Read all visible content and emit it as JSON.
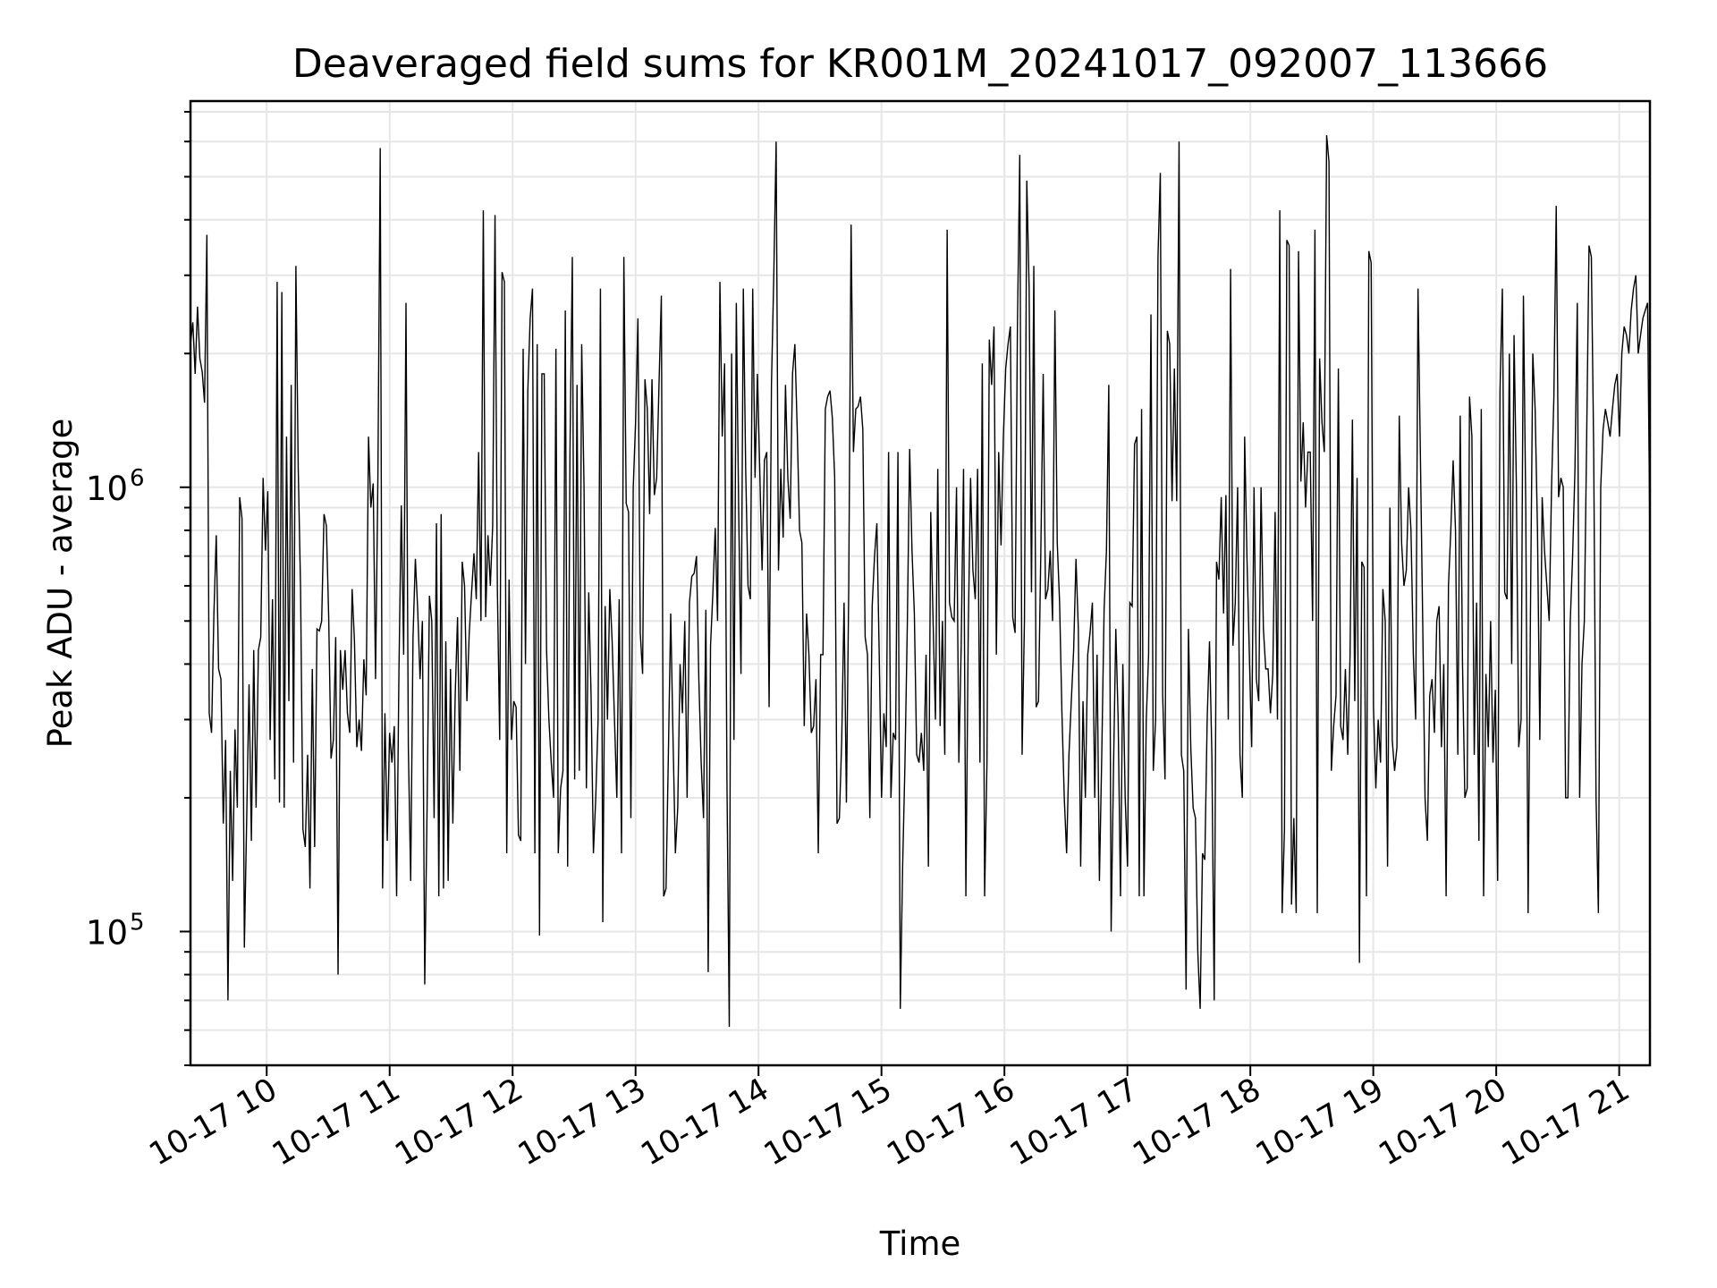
{
  "chart_data": {
    "type": "line",
    "title": "Deaveraged field sums for KR001M_20241017_092007_113666",
    "xlabel": "Time",
    "ylabel": "Peak ADU - average",
    "yscale": "log",
    "grid": true,
    "xlim": [
      "2024-10-17 09:22",
      "2024-10-17 21:15"
    ],
    "ylim": [
      50000,
      7400000
    ],
    "x_ticks": [
      "10-17 10",
      "10-17 11",
      "10-17 12",
      "10-17 13",
      "10-17 14",
      "10-17 15",
      "10-17 16",
      "10-17 17",
      "10-17 18",
      "10-17 19",
      "10-17 20",
      "10-17 21"
    ],
    "x_tick_hours": [
      10,
      11,
      12,
      13,
      14,
      15,
      16,
      17,
      18,
      19,
      20,
      21
    ],
    "y_ticks": [
      {
        "value": 100000,
        "label": "10",
        "exp": "5"
      },
      {
        "value": 1000000,
        "label": "10",
        "exp": "6"
      }
    ],
    "x_start_hour": 9.38,
    "x_end_hour": 21.25,
    "series": [
      {
        "values": [
          2100000,
          2350000,
          1800000,
          2550000,
          1950000,
          1820000,
          1550000,
          3700000,
          310000,
          280000,
          520000,
          780000,
          390000,
          370000,
          175000,
          270000,
          70000,
          230000,
          130000,
          285000,
          190000,
          950000,
          850000,
          92000,
          180000,
          360000,
          160000,
          430000,
          190000,
          430000,
          460000,
          1050000,
          720000,
          980000,
          270000,
          560000,
          220000,
          2900000,
          195000,
          2750000,
          190000,
          1300000,
          330000,
          1700000,
          240000,
          3150000,
          1100000,
          590000,
          170000,
          155000,
          250000,
          125000,
          390000,
          155000,
          480000,
          475000,
          500000,
          870000,
          820000,
          510000,
          245000,
          270000,
          460000,
          80000,
          430000,
          350000,
          430000,
          310000,
          280000,
          590000,
          450000,
          260000,
          300000,
          255000,
          410000,
          340000,
          1300000,
          900000,
          1020000,
          370000,
          1050000,
          5800000,
          125000,
          310000,
          160000,
          280000,
          240000,
          290000,
          120000,
          390000,
          910000,
          420000,
          2600000,
          260000,
          130000,
          460000,
          690000,
          530000,
          370000,
          500000,
          76000,
          190000,
          570000,
          500000,
          180000,
          830000,
          120000,
          870000,
          125000,
          450000,
          130000,
          390000,
          175000,
          340000,
          510000,
          230000,
          680000,
          600000,
          330000,
          470000,
          580000,
          710000,
          560000,
          1200000,
          500000,
          4200000,
          510000,
          780000,
          600000,
          820000,
          4100000,
          590000,
          270000,
          3050000,
          2900000,
          150000,
          620000,
          270000,
          330000,
          320000,
          165000,
          160000,
          2050000,
          400000,
          1650000,
          2400000,
          2800000,
          150000,
          2100000,
          98000,
          1800000,
          1800000,
          430000,
          300000,
          240000,
          200000,
          2050000,
          150000,
          210000,
          230000,
          2500000,
          140000,
          1200000,
          3300000,
          220000,
          1700000,
          230000,
          2100000,
          1000000,
          210000,
          580000,
          340000,
          150000,
          200000,
          300000,
          2800000,
          105000,
          540000,
          300000,
          590000,
          450000,
          300000,
          200000,
          560000,
          150000,
          3300000,
          920000,
          880000,
          180000,
          1000000,
          1400000,
          2400000,
          470000,
          380000,
          1750000,
          1500000,
          870000,
          1750000,
          960000,
          1050000,
          1700000,
          2700000,
          120000,
          125000,
          250000,
          520000,
          270000,
          150000,
          190000,
          400000,
          310000,
          500000,
          200000,
          550000,
          630000,
          640000,
          700000,
          370000,
          240000,
          180000,
          530000,
          81000,
          440000,
          580000,
          810000,
          500000,
          2900000,
          1300000,
          1900000,
          220000,
          61000,
          2000000,
          270000,
          2600000,
          900000,
          380000,
          2800000,
          1100000,
          600000,
          560000,
          2800000,
          1050000,
          1800000,
          1100000,
          650000,
          1150000,
          1200000,
          320000,
          1700000,
          3000000,
          6000000,
          650000,
          1100000,
          770000,
          1700000,
          1050000,
          850000,
          1800000,
          2100000,
          1350000,
          800000,
          750000,
          290000,
          520000,
          420000,
          280000,
          290000,
          370000,
          150000,
          420000,
          420000,
          1500000,
          1600000,
          1650000,
          1430000,
          1050000,
          175000,
          180000,
          270000,
          550000,
          195000,
          600000,
          3900000,
          1200000,
          1500000,
          1520000,
          1600000,
          1350000,
          460000,
          420000,
          180000,
          540000,
          700000,
          830000,
          420000,
          200000,
          310000,
          260000,
          1200000,
          200000,
          280000,
          270000,
          1200000,
          67000,
          140000,
          240000,
          490000,
          1220000,
          720000,
          520000,
          250000,
          240000,
          280000,
          230000,
          420000,
          140000,
          880000,
          500000,
          300000,
          1100000,
          290000,
          500000,
          250000,
          3800000,
          550000,
          510000,
          500000,
          1000000,
          240000,
          440000,
          1100000,
          120000,
          470000,
          1050000,
          650000,
          560000,
          1100000,
          240000,
          1900000,
          120000,
          240000,
          2150000,
          1700000,
          2300000,
          420000,
          1200000,
          740000,
          1300000,
          1850000,
          2100000,
          2300000,
          510000,
          470000,
          2300000,
          5600000,
          250000,
          500000,
          4900000,
          2800000,
          580000,
          3150000,
          320000,
          330000,
          720000,
          1800000,
          560000,
          590000,
          720000,
          500000,
          2500000,
          750000,
          550000,
          310000,
          200000,
          150000,
          250000,
          330000,
          430000,
          690000,
          480000,
          140000,
          330000,
          200000,
          420000,
          470000,
          550000,
          200000,
          420000,
          130000,
          250000,
          530000,
          720000,
          1700000,
          100000,
          230000,
          480000,
          300000,
          120000,
          400000,
          200000,
          140000,
          550000,
          540000,
          1250000,
          1300000,
          120000,
          1500000,
          120000,
          300000,
          420000,
          2450000,
          230000,
          300000,
          3300000,
          5100000,
          340000,
          220000,
          2250000,
          2100000,
          930000,
          1850000,
          930000,
          6000000,
          250000,
          230000,
          74000,
          480000,
          260000,
          190000,
          180000,
          90000,
          67000,
          150000,
          145000,
          300000,
          450000,
          250000,
          70000,
          680000,
          620000,
          950000,
          520000,
          960000,
          300000,
          3100000,
          440000,
          550000,
          1000000,
          250000,
          200000,
          1300000,
          690000,
          420000,
          260000,
          1000000,
          370000,
          330000,
          1000000,
          480000,
          390000,
          390000,
          310000,
          380000,
          880000,
          300000,
          4200000,
          110000,
          170000,
          3600000,
          3500000,
          115000,
          180000,
          110000,
          3400000,
          1030000,
          1400000,
          900000,
          1200000,
          1200000,
          500000,
          3800000,
          110000,
          1950000,
          1400000,
          1200000,
          6200000,
          5400000,
          230000,
          290000,
          340000,
          1850000,
          290000,
          270000,
          390000,
          250000,
          420000,
          1420000,
          330000,
          1050000,
          85000,
          680000,
          660000,
          120000,
          3400000,
          3200000,
          320000,
          210000,
          300000,
          240000,
          590000,
          500000,
          140000,
          900000,
          270000,
          230000,
          260000,
          1450000,
          750000,
          600000,
          650000,
          1000000,
          800000,
          420000,
          300000,
          2800000,
          1200000,
          500000,
          200000,
          160000,
          340000,
          370000,
          280000,
          500000,
          540000,
          260000,
          400000,
          120000,
          600000,
          800000,
          1150000,
          800000,
          250000,
          1450000,
          400000,
          200000,
          210000,
          1600000,
          1300000,
          250000,
          550000,
          160000,
          1500000,
          120000,
          380000,
          260000,
          500000,
          240000,
          350000,
          130000,
          1650000,
          2800000,
          580000,
          560000,
          2000000,
          400000,
          2200000,
          1000000,
          260000,
          300000,
          2700000,
          900000,
          110000,
          520000,
          2000000,
          1500000,
          800000,
          270000,
          950000,
          720000,
          600000,
          500000,
          1000000,
          1600000,
          4300000,
          950000,
          1050000,
          1000000,
          200000,
          200000,
          500000,
          700000,
          1100000,
          2600000,
          200000,
          400000,
          500000,
          1300000,
          3500000,
          3300000,
          1200000,
          200000,
          110000,
          1000000,
          1350000,
          1500000,
          1400000,
          1300000,
          1500000,
          1700000,
          1800000,
          1300000,
          2000000,
          2300000,
          2200000,
          2000000,
          2500000,
          2800000,
          3000000,
          2000000,
          2200000,
          2400000,
          2500000,
          2600000,
          750000
        ]
      }
    ]
  }
}
